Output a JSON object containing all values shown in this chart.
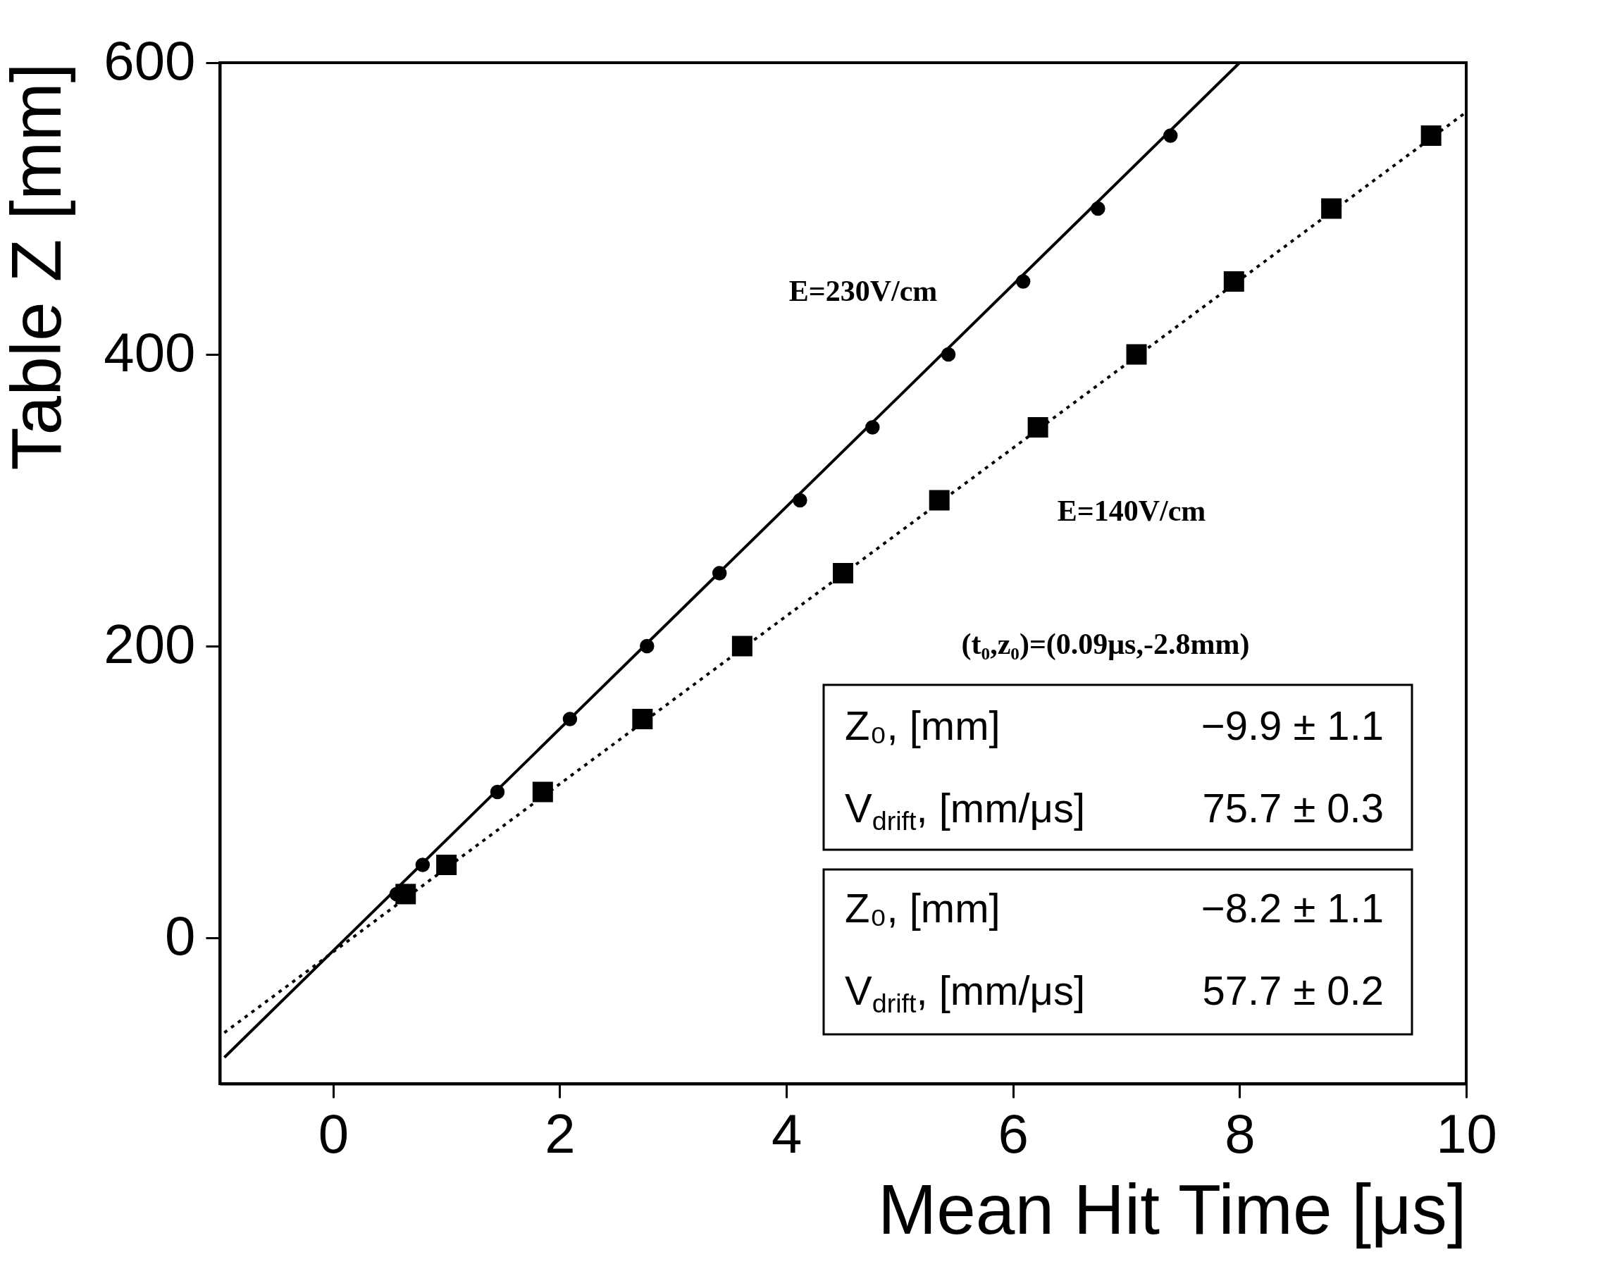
{
  "chart_data": {
    "type": "scatter",
    "xlabel": "Mean Hit Time [μs]",
    "ylabel": "Table Z [mm]",
    "xlim": [
      -1,
      10
    ],
    "ylim": [
      -100,
      600
    ],
    "xticks": [
      0,
      2,
      4,
      6,
      8,
      10
    ],
    "yticks": [
      0,
      200,
      400,
      600
    ],
    "grid": false,
    "series": [
      {
        "type": "scatter",
        "marker": "square",
        "color": "#000000",
        "x": [
          0.64,
          1.0,
          1.85,
          2.73,
          3.61,
          4.5,
          5.35,
          6.22,
          7.09,
          7.95,
          8.81,
          9.69
        ],
        "values": [
          30,
          50,
          100,
          150,
          200,
          250,
          300,
          350,
          400,
          450,
          500,
          550
        ]
      },
      {
        "type": "scatter",
        "marker": "circle",
        "color": "#000000",
        "x": [
          0.56,
          0.79,
          1.45,
          2.09,
          2.77,
          3.41,
          4.12,
          4.76,
          5.43,
          6.09,
          6.75,
          7.39
        ],
        "values": [
          30,
          50,
          100,
          150,
          200,
          250,
          300,
          350,
          400,
          450,
          500,
          550
        ]
      },
      {
        "type": "line",
        "line_style": "solid",
        "color": "#000000",
        "x": [
          -0.96,
          8.0
        ],
        "values": [
          -82,
          600
        ]
      },
      {
        "type": "line",
        "line_style": "dotted",
        "color": "#000000",
        "x": [
          -0.96,
          9.98
        ],
        "values": [
          -65,
          565
        ]
      }
    ],
    "annotations": [
      "E=230V/cm",
      "E=140V/cm",
      "(t₀,z₀)=(0.09μs,-2.8mm)",
      "Z₀, [mm]",
      "−9.9 ± 1.1",
      "V$_{drift}$, [mm/μs]",
      "75.7 ± 0.3",
      "Z₀, [mm]",
      "−8.2 ± 1.1",
      "V$_{drift}$, [mm/μs]",
      "57.7 ± 0.2"
    ]
  }
}
